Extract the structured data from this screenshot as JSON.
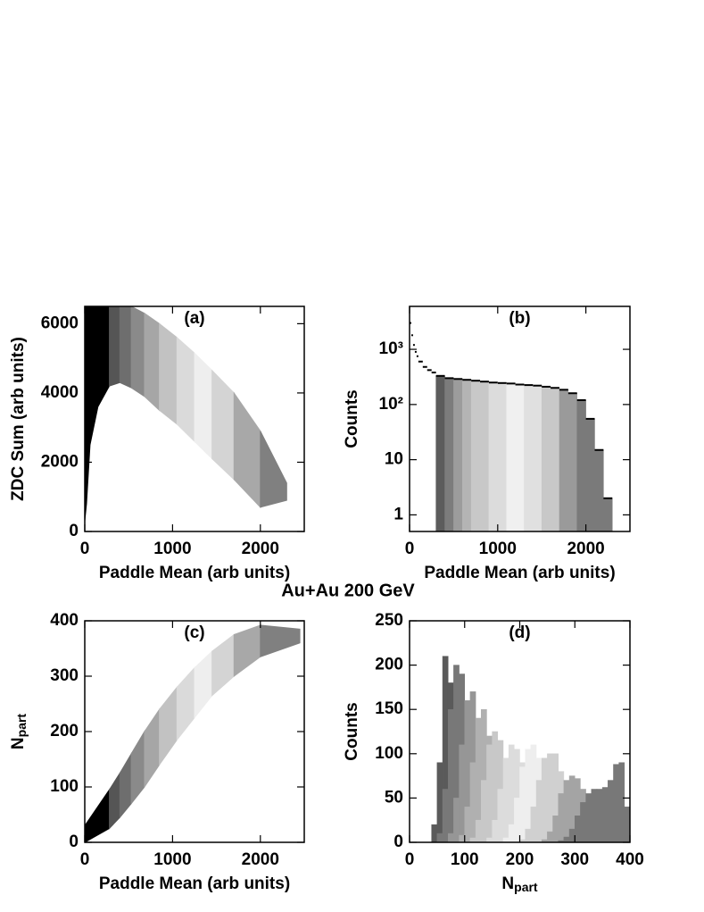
{
  "figure_title": "Au+Au 200 GeV",
  "chart_data": [
    {
      "type": "region",
      "panel_label": "(a)",
      "x_label": "Paddle Mean (arb units)",
      "y_label": "ZDC Sum (arb units)",
      "xlim": [
        0,
        2500
      ],
      "xticks": [
        0,
        1000,
        2000
      ],
      "ylim": [
        0,
        6500
      ],
      "yticks": [
        0,
        2000,
        4000,
        6000
      ],
      "series": [
        {
          "color": "#000000",
          "x": [
            0,
            0,
            280,
            280,
            150,
            60,
            20
          ],
          "y": [
            300,
            6500,
            6500,
            4200,
            3600,
            2500,
            800
          ]
        },
        {
          "color": "#555555",
          "x": [
            280,
            280,
            400,
            400
          ],
          "y": [
            4200,
            6500,
            6500,
            4300
          ]
        },
        {
          "color": "#6e6e6e",
          "x": [
            400,
            400,
            530,
            530
          ],
          "y": [
            4300,
            6500,
            6500,
            4150
          ]
        },
        {
          "color": "#8a8a8a",
          "x": [
            530,
            530,
            680,
            680
          ],
          "y": [
            4150,
            6500,
            6300,
            3900
          ]
        },
        {
          "color": "#a6a6a6",
          "x": [
            680,
            680,
            850,
            850
          ],
          "y": [
            3900,
            6300,
            6000,
            3500
          ]
        },
        {
          "color": "#c2c2c2",
          "x": [
            850,
            850,
            1050,
            1050
          ],
          "y": [
            3500,
            6000,
            5600,
            3100
          ]
        },
        {
          "color": "#dadada",
          "x": [
            1050,
            1050,
            1250,
            1250
          ],
          "y": [
            3100,
            5600,
            5150,
            2600
          ]
        },
        {
          "color": "#eeeeee",
          "x": [
            1250,
            1250,
            1450,
            1450
          ],
          "y": [
            2600,
            5150,
            4650,
            2100
          ]
        },
        {
          "color": "#d4d4d4",
          "x": [
            1450,
            1450,
            1700,
            1700
          ],
          "y": [
            2100,
            4650,
            4000,
            1500
          ]
        },
        {
          "color": "#a8a8a8",
          "x": [
            1700,
            1700,
            2000,
            2000
          ],
          "y": [
            1500,
            4000,
            2900,
            700
          ]
        },
        {
          "color": "#808080",
          "x": [
            2000,
            2000,
            2300,
            2300
          ],
          "y": [
            700,
            2900,
            1400,
            900
          ]
        }
      ]
    },
    {
      "type": "histogram",
      "panel_label": "(b)",
      "x_label": "Paddle Mean (arb units)",
      "y_label": "Counts",
      "xlim": [
        0,
        2500
      ],
      "xticks": [
        0,
        1000,
        2000
      ],
      "ylim": [
        0.5,
        6000
      ],
      "ylog": true,
      "yticks": [
        1,
        10,
        {
          "value": 100,
          "label": "10²"
        },
        {
          "value": 1000,
          "label": "10³"
        }
      ],
      "bins": [
        0,
        20,
        40,
        60,
        80,
        100,
        150,
        200,
        250,
        300,
        400,
        500,
        600,
        700,
        800,
        900,
        1000,
        1100,
        1200,
        1300,
        1400,
        1500,
        1600,
        1700,
        1800,
        1900,
        2000,
        2100,
        2200,
        2300
      ],
      "values": [
        3000,
        1800,
        1200,
        900,
        750,
        600,
        480,
        420,
        380,
        330,
        300,
        290,
        280,
        270,
        260,
        250,
        245,
        240,
        230,
        225,
        220,
        210,
        200,
        185,
        160,
        120,
        55,
        15,
        2
      ],
      "colors": [
        "#ffffff",
        "#ffffff",
        "#ffffff",
        "#ffffff",
        "#ffffff",
        "#ffffff",
        "#ffffff",
        "#ffffff",
        "#ffffff",
        "#5c5c5c",
        "#7c7c7c",
        "#9c9c9c",
        "#b4b4b4",
        "#c8c8c8",
        "#c8c8c8",
        "#dcdcdc",
        "#dcdcdc",
        "#f0f0f0",
        "#f0f0f0",
        "#e0e0e0",
        "#e0e0e0",
        "#c8c8c8",
        "#c8c8c8",
        "#9a9a9a",
        "#9a9a9a",
        "#7a7a7a",
        "#7a7a7a",
        "#7a7a7a",
        "#7a7a7a"
      ]
    },
    {
      "type": "region",
      "panel_label": "(c)",
      "x_label": "Paddle Mean (arb units)",
      "y_label": {
        "text": "N",
        "sub": "part"
      },
      "xlim": [
        0,
        2500
      ],
      "xticks": [
        0,
        1000,
        2000
      ],
      "ylim": [
        0,
        400
      ],
      "yticks": [
        0,
        100,
        200,
        300,
        400
      ],
      "series": [
        {
          "color": "#000000",
          "x": [
            0,
            0,
            280,
            280
          ],
          "y": [
            0,
            30,
            95,
            25
          ]
        },
        {
          "color": "#555555",
          "x": [
            280,
            280,
            400,
            400
          ],
          "y": [
            25,
            95,
            125,
            45
          ]
        },
        {
          "color": "#6e6e6e",
          "x": [
            400,
            400,
            530,
            530
          ],
          "y": [
            45,
            125,
            160,
            70
          ]
        },
        {
          "color": "#8a8a8a",
          "x": [
            530,
            530,
            680,
            680
          ],
          "y": [
            70,
            160,
            200,
            100
          ]
        },
        {
          "color": "#a6a6a6",
          "x": [
            680,
            680,
            850,
            850
          ],
          "y": [
            100,
            200,
            240,
            140
          ]
        },
        {
          "color": "#c2c2c2",
          "x": [
            850,
            850,
            1050,
            1050
          ],
          "y": [
            140,
            240,
            280,
            185
          ]
        },
        {
          "color": "#dadada",
          "x": [
            1050,
            1050,
            1250,
            1250
          ],
          "y": [
            185,
            280,
            315,
            225
          ]
        },
        {
          "color": "#eeeeee",
          "x": [
            1250,
            1250,
            1450,
            1450
          ],
          "y": [
            225,
            315,
            345,
            265
          ]
        },
        {
          "color": "#d4d4d4",
          "x": [
            1450,
            1450,
            1700,
            1700
          ],
          "y": [
            265,
            345,
            375,
            300
          ]
        },
        {
          "color": "#a8a8a8",
          "x": [
            1700,
            1700,
            2000,
            2000
          ],
          "y": [
            300,
            375,
            392,
            335
          ]
        },
        {
          "color": "#808080",
          "x": [
            2000,
            2000,
            2450,
            2450
          ],
          "y": [
            335,
            392,
            385,
            360
          ]
        }
      ]
    },
    {
      "type": "multihistogram",
      "panel_label": "(d)",
      "x_label": {
        "text": "N",
        "sub": "part"
      },
      "y_label": "Counts",
      "xlim": [
        0,
        400
      ],
      "xticks": [
        0,
        100,
        200,
        300,
        400
      ],
      "ylim": [
        0,
        250
      ],
      "yticks": [
        0,
        50,
        100,
        150,
        200,
        250
      ],
      "series": [
        {
          "color": "#5a5a5a",
          "bins": [
            40,
            50,
            60,
            70,
            80,
            90,
            100,
            110
          ],
          "values": [
            20,
            90,
            210,
            180,
            120,
            60,
            15
          ]
        },
        {
          "color": "#787878",
          "bins": [
            50,
            60,
            70,
            80,
            90,
            100,
            110,
            120,
            130,
            140
          ],
          "values": [
            10,
            60,
            150,
            200,
            190,
            140,
            70,
            20,
            5
          ]
        },
        {
          "color": "#969696",
          "bins": [
            70,
            80,
            90,
            100,
            110,
            120,
            130,
            140,
            150,
            160,
            170
          ],
          "values": [
            10,
            50,
            110,
            160,
            170,
            140,
            90,
            40,
            12,
            3
          ]
        },
        {
          "color": "#b0b0b0",
          "bins": [
            90,
            100,
            110,
            120,
            130,
            140,
            150,
            160,
            170,
            180,
            190,
            200
          ],
          "values": [
            8,
            40,
            90,
            140,
            150,
            120,
            80,
            40,
            12,
            4,
            1
          ]
        },
        {
          "color": "#c8c8c8",
          "bins": [
            110,
            120,
            130,
            140,
            150,
            160,
            170,
            180,
            190,
            200,
            210,
            220,
            230,
            240
          ],
          "values": [
            5,
            25,
            70,
            110,
            125,
            115,
            85,
            50,
            25,
            8,
            3,
            1,
            1
          ]
        },
        {
          "color": "#dcdcdc",
          "bins": [
            140,
            150,
            160,
            170,
            180,
            190,
            200,
            210,
            220,
            230,
            240,
            250,
            260,
            270
          ],
          "values": [
            5,
            25,
            60,
            95,
            110,
            105,
            90,
            60,
            30,
            12,
            4,
            1,
            1
          ]
        },
        {
          "color": "#eeeeee",
          "bins": [
            170,
            180,
            190,
            200,
            210,
            220,
            230,
            240,
            250,
            260,
            270,
            280,
            290,
            300
          ],
          "values": [
            5,
            20,
            50,
            85,
            105,
            110,
            95,
            70,
            40,
            18,
            6,
            2,
            1
          ]
        },
        {
          "color": "#d0d0d0",
          "bins": [
            200,
            210,
            220,
            230,
            240,
            250,
            260,
            270,
            280,
            290,
            300,
            310,
            320,
            330,
            340
          ],
          "values": [
            3,
            15,
            40,
            70,
            95,
            100,
            100,
            80,
            55,
            30,
            12,
            4,
            2,
            1
          ]
        },
        {
          "color": "#a4a4a4",
          "bins": [
            240,
            250,
            260,
            270,
            280,
            290,
            300,
            310,
            320,
            330,
            340,
            350,
            360,
            370,
            380
          ],
          "values": [
            3,
            12,
            30,
            55,
            70,
            75,
            72,
            60,
            45,
            28,
            14,
            5,
            2,
            1
          ]
        },
        {
          "color": "#787878",
          "bins": [
            270,
            280,
            290,
            300,
            310,
            320,
            330,
            340,
            350,
            360,
            370,
            380,
            390,
            400
          ],
          "values": [
            2,
            6,
            15,
            30,
            45,
            55,
            60,
            60,
            62,
            70,
            88,
            90,
            40
          ]
        }
      ]
    }
  ]
}
